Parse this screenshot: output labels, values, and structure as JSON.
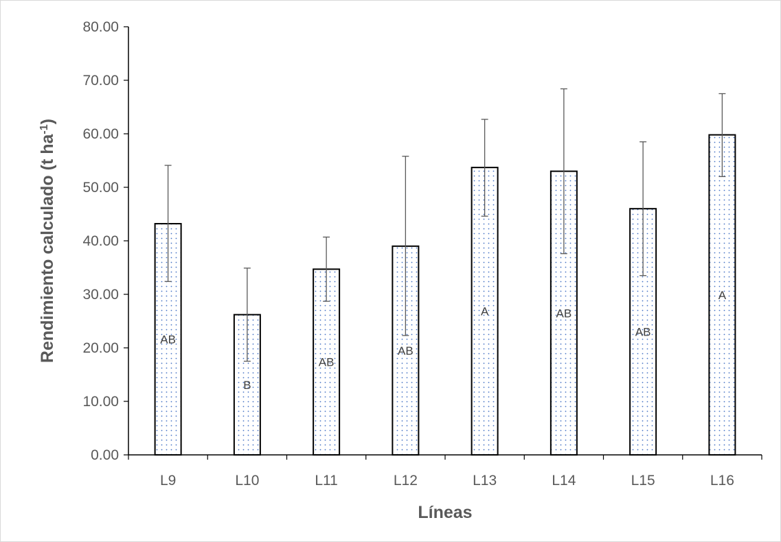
{
  "chart_data": {
    "type": "bar",
    "categories": [
      "L9",
      "L10",
      "L11",
      "L12",
      "L13",
      "L14",
      "L15",
      "L16"
    ],
    "values": [
      43.2,
      26.2,
      34.7,
      39.0,
      53.7,
      53.0,
      46.0,
      59.8
    ],
    "error_upper": [
      54.1,
      34.9,
      40.7,
      55.8,
      62.7,
      68.4,
      58.5,
      67.5
    ],
    "error_lower": [
      32.4,
      17.5,
      28.7,
      22.3,
      44.6,
      37.6,
      33.5,
      52.0
    ],
    "letters": [
      "AB",
      "B",
      "AB",
      "AB",
      "A",
      "AB",
      "AB",
      "A"
    ],
    "xlabel": "Líneas",
    "ylabel_main": "Rendimiento calculado (t ha",
    "ylabel_superscript": "-1",
    "ylabel_close": ")",
    "ylim": [
      0,
      80
    ],
    "yticks": [
      0,
      10,
      20,
      30,
      40,
      50,
      60,
      70,
      80
    ],
    "ytick_labels": [
      "0.00",
      "10.00",
      "20.00",
      "30.00",
      "40.00",
      "50.00",
      "60.00",
      "70.00",
      "80.00"
    ],
    "grid": false,
    "legend": "none",
    "colors": {
      "bar_fill": "#ffffff",
      "bar_dots": "#4472c4",
      "bar_edge": "#000000",
      "axis": "#000000",
      "error_bar": "#595959",
      "text": "#595959"
    }
  }
}
